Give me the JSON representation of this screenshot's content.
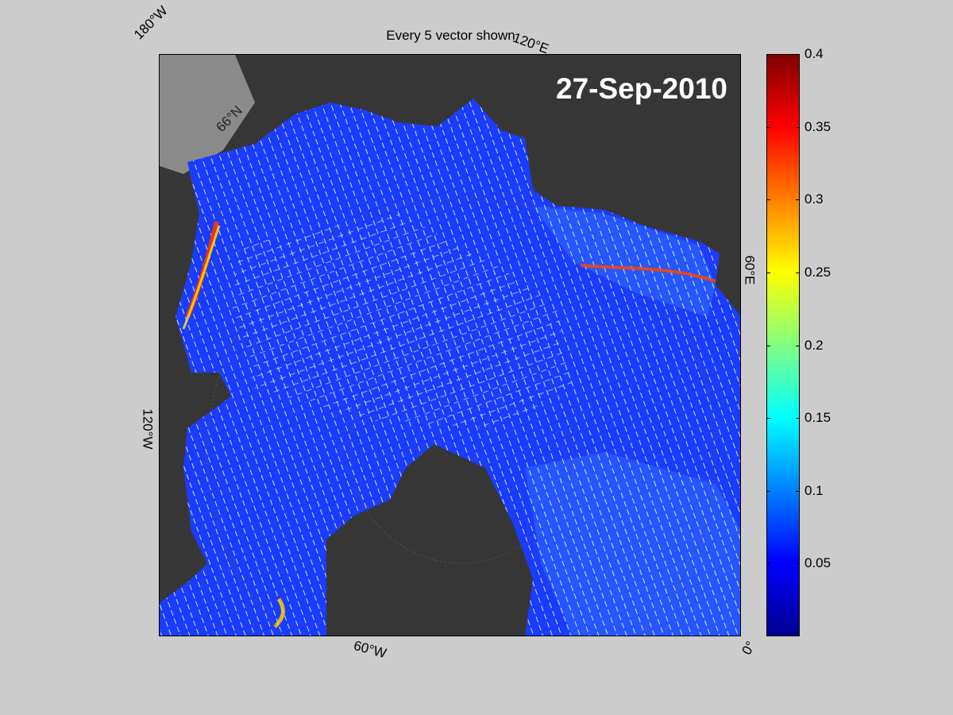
{
  "figure": {
    "title": "Every 5 vector shown",
    "date_label": "27-Sep-2010"
  },
  "map": {
    "coord_labels": {
      "lon_180w": "180°W",
      "lon_120e": "120°E",
      "lon_60e": "60°E",
      "lon_120w": "120°W",
      "lon_60w": "60°W",
      "lon_0": "0°",
      "lat_66n": "66°N"
    },
    "colors": {
      "land": "#363636",
      "ocean": "#1a3cff",
      "vectors": "#ffffff"
    }
  },
  "colorbar": {
    "ticks": [
      "0.4",
      "0.35",
      "0.3",
      "0.25",
      "0.2",
      "0.15",
      "0.1",
      "0.05"
    ],
    "tick_values": [
      0.4,
      0.35,
      0.3,
      0.25,
      0.2,
      0.15,
      0.1,
      0.05
    ],
    "range": [
      0,
      0.4
    ],
    "colormap": "jet"
  }
}
